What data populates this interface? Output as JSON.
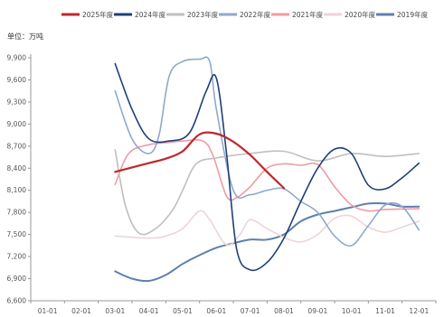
{
  "chart_data": {
    "type": "line",
    "unit_label": "单位：万吨",
    "legend_position": "top",
    "grid": false,
    "categories": [
      "01-01",
      "02-01",
      "03-01",
      "04-01",
      "05-01",
      "06-01",
      "07-01",
      "08-01",
      "09-01",
      "10-01",
      "11-01",
      "12-01"
    ],
    "ylim": [
      6600,
      9900
    ],
    "yticks": [
      6600,
      6900,
      7200,
      7500,
      7800,
      8100,
      8400,
      8700,
      9000,
      9300,
      9600,
      9900
    ],
    "series": [
      {
        "name": "2025年度",
        "color": "#c0272d",
        "width": 2.2,
        "points": [
          [
            2.0,
            8350
          ],
          [
            3.0,
            8470
          ],
          [
            3.5,
            8530
          ],
          [
            4.0,
            8630
          ],
          [
            4.5,
            8860
          ],
          [
            5.0,
            8870
          ],
          [
            5.5,
            8760
          ],
          [
            6.0,
            8580
          ],
          [
            6.5,
            8350
          ],
          [
            7.0,
            8130
          ]
        ]
      },
      {
        "name": "2024年度",
        "color": "#1f3f79",
        "width": 1.6,
        "points": [
          [
            2.0,
            9820
          ],
          [
            2.5,
            9200
          ],
          [
            3.0,
            8800
          ],
          [
            3.6,
            8770
          ],
          [
            4.2,
            8880
          ],
          [
            4.7,
            9450
          ],
          [
            5.0,
            9620
          ],
          [
            5.3,
            8600
          ],
          [
            5.6,
            7300
          ],
          [
            6.0,
            7020
          ],
          [
            6.5,
            7120
          ],
          [
            7.0,
            7450
          ],
          [
            7.5,
            7950
          ],
          [
            8.0,
            8400
          ],
          [
            8.5,
            8660
          ],
          [
            9.0,
            8600
          ],
          [
            9.5,
            8170
          ],
          [
            10.0,
            8120
          ],
          [
            10.5,
            8270
          ],
          [
            11.0,
            8470
          ]
        ]
      },
      {
        "name": "2023年度",
        "color": "#bfbfbf",
        "width": 1.6,
        "points": [
          [
            2.0,
            8650
          ],
          [
            2.3,
            7900
          ],
          [
            2.7,
            7520
          ],
          [
            3.2,
            7580
          ],
          [
            3.7,
            7830
          ],
          [
            4.0,
            8100
          ],
          [
            4.4,
            8460
          ],
          [
            5.0,
            8540
          ],
          [
            6.0,
            8600
          ],
          [
            7.0,
            8630
          ],
          [
            8.0,
            8500
          ],
          [
            9.0,
            8600
          ],
          [
            10.0,
            8560
          ],
          [
            11.0,
            8600
          ]
        ]
      },
      {
        "name": "2022年度",
        "color": "#8ea9cd",
        "width": 1.6,
        "points": [
          [
            2.0,
            9450
          ],
          [
            2.5,
            8800
          ],
          [
            3.0,
            8600
          ],
          [
            3.3,
            8850
          ],
          [
            3.6,
            9650
          ],
          [
            4.0,
            9850
          ],
          [
            4.5,
            9880
          ],
          [
            4.8,
            9850
          ],
          [
            5.0,
            9200
          ],
          [
            5.5,
            8100
          ],
          [
            6.0,
            8040
          ],
          [
            6.5,
            8100
          ],
          [
            7.0,
            8120
          ],
          [
            7.5,
            7950
          ],
          [
            8.0,
            7800
          ],
          [
            8.5,
            7480
          ],
          [
            9.0,
            7350
          ],
          [
            9.5,
            7620
          ],
          [
            10.0,
            7900
          ],
          [
            10.5,
            7880
          ],
          [
            11.0,
            7560
          ]
        ]
      },
      {
        "name": "2021年度",
        "color": "#f09aa3",
        "width": 1.6,
        "points": [
          [
            2.0,
            8180
          ],
          [
            2.4,
            8600
          ],
          [
            3.0,
            8720
          ],
          [
            3.6,
            8750
          ],
          [
            4.0,
            8770
          ],
          [
            4.6,
            8770
          ],
          [
            4.9,
            8570
          ],
          [
            5.3,
            8020
          ],
          [
            5.6,
            8000
          ],
          [
            6.0,
            8150
          ],
          [
            6.5,
            8400
          ],
          [
            7.0,
            8460
          ],
          [
            7.5,
            8440
          ],
          [
            8.0,
            8450
          ],
          [
            8.5,
            8150
          ],
          [
            9.0,
            7900
          ],
          [
            9.5,
            7820
          ],
          [
            10.0,
            7840
          ],
          [
            11.0,
            7850
          ]
        ]
      },
      {
        "name": "2020年度",
        "color": "#ecd5da",
        "width": 1.6,
        "points": [
          [
            2.0,
            7480
          ],
          [
            3.0,
            7450
          ],
          [
            3.5,
            7480
          ],
          [
            4.0,
            7580
          ],
          [
            4.5,
            7820
          ],
          [
            4.8,
            7700
          ],
          [
            5.3,
            7360
          ],
          [
            5.7,
            7500
          ],
          [
            6.0,
            7700
          ],
          [
            6.5,
            7580
          ],
          [
            7.0,
            7460
          ],
          [
            7.5,
            7400
          ],
          [
            8.0,
            7500
          ],
          [
            8.5,
            7720
          ],
          [
            9.0,
            7750
          ],
          [
            9.5,
            7600
          ],
          [
            10.0,
            7530
          ],
          [
            10.5,
            7600
          ],
          [
            11.0,
            7680
          ]
        ]
      },
      {
        "name": "2019年度",
        "color": "#5d7fae",
        "width": 2.0,
        "points": [
          [
            2.0,
            7000
          ],
          [
            2.5,
            6900
          ],
          [
            3.0,
            6870
          ],
          [
            3.5,
            6950
          ],
          [
            4.0,
            7100
          ],
          [
            4.5,
            7220
          ],
          [
            5.0,
            7320
          ],
          [
            5.5,
            7380
          ],
          [
            6.0,
            7430
          ],
          [
            6.5,
            7430
          ],
          [
            7.0,
            7500
          ],
          [
            7.5,
            7680
          ],
          [
            8.0,
            7770
          ],
          [
            8.5,
            7820
          ],
          [
            9.0,
            7870
          ],
          [
            9.5,
            7920
          ],
          [
            10.0,
            7920
          ],
          [
            10.5,
            7880
          ],
          [
            11.0,
            7880
          ]
        ]
      }
    ]
  }
}
